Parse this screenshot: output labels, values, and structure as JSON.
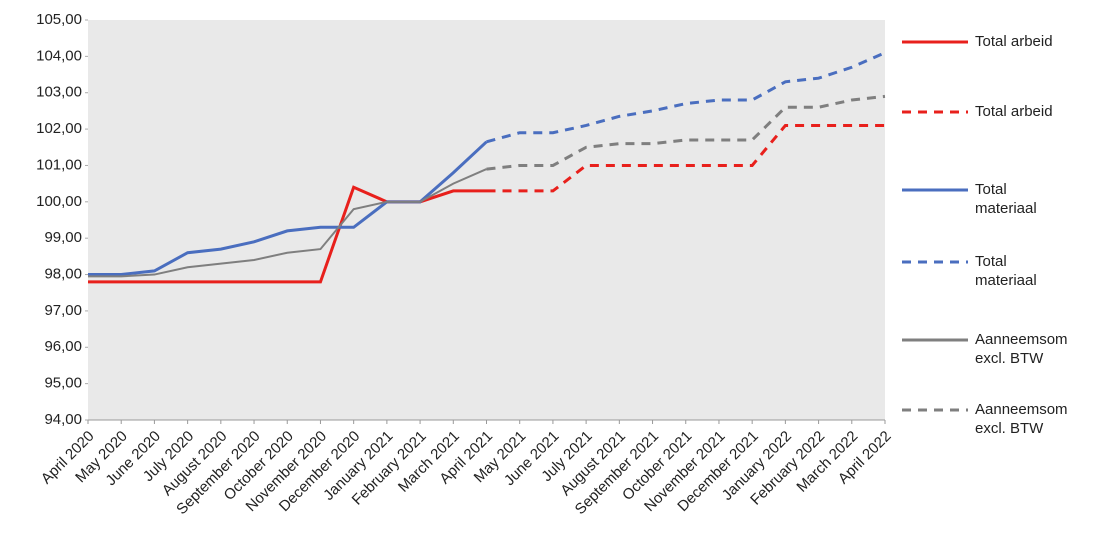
{
  "chart_data": {
    "type": "line",
    "categories": [
      "April 2020",
      "May 2020",
      "June 2020",
      "July 2020",
      "August 2020",
      "September 2020",
      "October 2020",
      "November 2020",
      "December 2020",
      "January 2021",
      "February 2021",
      "March 2021",
      "April 2021",
      "May 2021",
      "June 2021",
      "July 2021",
      "August 2021",
      "September 2021",
      "October 2021",
      "November 2021",
      "December 2021",
      "January 2022",
      "February 2022",
      "March 2022",
      "April 2022"
    ],
    "series": [
      {
        "name": "Total arbeid",
        "color": "#e8201c",
        "style": "solid",
        "values": [
          97.8,
          97.8,
          97.8,
          97.8,
          97.8,
          97.8,
          97.8,
          97.8,
          100.4,
          100.0,
          100.0,
          100.3,
          100.3,
          null,
          null,
          null,
          null,
          null,
          null,
          null,
          null,
          null,
          null,
          null,
          null
        ]
      },
      {
        "name": "Total arbeid",
        "color": "#e8201c",
        "style": "dashed",
        "values": [
          null,
          null,
          null,
          null,
          null,
          null,
          null,
          null,
          null,
          null,
          null,
          null,
          100.3,
          100.3,
          100.3,
          101.0,
          101.0,
          101.0,
          101.0,
          101.0,
          101.0,
          102.1,
          102.1,
          102.1,
          102.1
        ]
      },
      {
        "name": "Total materiaal",
        "color": "#4a6ebf",
        "style": "solid",
        "values": [
          98.0,
          98.0,
          98.1,
          98.6,
          98.7,
          98.9,
          99.2,
          99.3,
          99.3,
          100.0,
          100.0,
          100.8,
          101.65,
          null,
          null,
          null,
          null,
          null,
          null,
          null,
          null,
          null,
          null,
          null,
          null
        ]
      },
      {
        "name": "Total materiaal",
        "color": "#4a6ebf",
        "style": "dashed",
        "values": [
          null,
          null,
          null,
          null,
          null,
          null,
          null,
          null,
          null,
          null,
          null,
          null,
          101.65,
          101.9,
          101.9,
          102.1,
          102.35,
          102.5,
          102.7,
          102.8,
          102.8,
          103.3,
          103.4,
          103.7,
          104.1
        ]
      },
      {
        "name": "Aanneemsom excl. BTW",
        "color": "#7f7f7f",
        "style": "solid",
        "values": [
          97.95,
          97.95,
          98.0,
          98.2,
          98.3,
          98.4,
          98.6,
          98.7,
          99.8,
          100.0,
          100.0,
          100.5,
          100.9,
          null,
          null,
          null,
          null,
          null,
          null,
          null,
          null,
          null,
          null,
          null,
          null
        ]
      },
      {
        "name": "Aanneemsom excl. BTW",
        "color": "#7f7f7f",
        "style": "dashed",
        "values": [
          null,
          null,
          null,
          null,
          null,
          null,
          null,
          null,
          null,
          null,
          null,
          null,
          100.9,
          101.0,
          101.0,
          101.5,
          101.6,
          101.6,
          101.7,
          101.7,
          101.7,
          102.6,
          102.6,
          102.8,
          102.9
        ]
      }
    ],
    "ylim": [
      94,
      105
    ],
    "yticks": [
      {
        "value": 94,
        "label": "94,00"
      },
      {
        "value": 95,
        "label": "95,00"
      },
      {
        "value": 96,
        "label": "96,00"
      },
      {
        "value": 97,
        "label": "97,00"
      },
      {
        "value": 98,
        "label": "98,00"
      },
      {
        "value": 99,
        "label": "99,00"
      },
      {
        "value": 100,
        "label": "100,00"
      },
      {
        "value": 101,
        "label": "101,00"
      },
      {
        "value": 102,
        "label": "102,00"
      },
      {
        "value": 103,
        "label": "103,00"
      },
      {
        "value": 104,
        "label": "104,00"
      },
      {
        "value": 105,
        "label": "105,00"
      }
    ],
    "legend": "right"
  }
}
